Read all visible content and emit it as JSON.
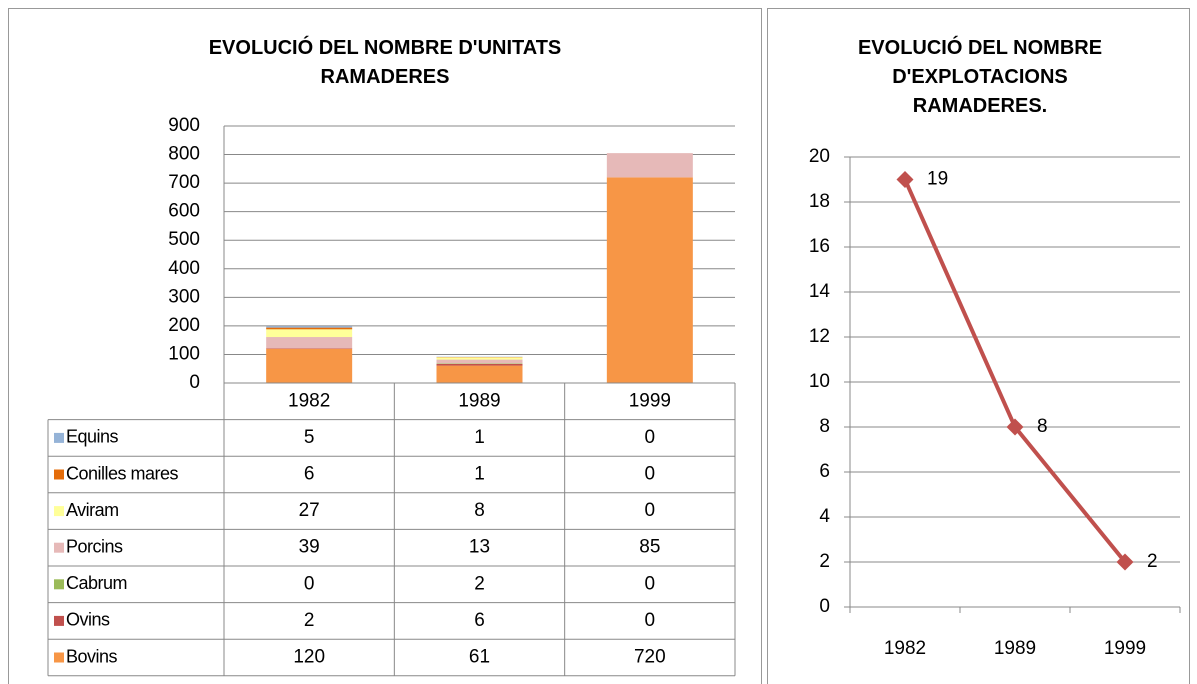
{
  "chart_data": [
    {
      "type": "stacked_bar_table",
      "title": "EVOLUCIÓ DEL NOMBRE D'UNITATS RAMADERES",
      "categories": [
        "1982",
        "1989",
        "1999"
      ],
      "series": [
        {
          "name": "Bovins",
          "color": "#f79646",
          "values": [
            120,
            61,
            720
          ]
        },
        {
          "name": "Ovins",
          "color": "#c0504d",
          "values": [
            2,
            6,
            0
          ]
        },
        {
          "name": "Cabrum",
          "color": "#9bbb59",
          "values": [
            0,
            2,
            0
          ]
        },
        {
          "name": "Porcins",
          "color": "#e6b9b8",
          "values": [
            39,
            13,
            85
          ]
        },
        {
          "name": "Aviram",
          "color": "#ffff99",
          "values": [
            27,
            8,
            0
          ]
        },
        {
          "name": "Conilles mares",
          "color": "#e46c0a",
          "values": [
            6,
            1,
            0
          ]
        },
        {
          "name": "Equins",
          "color": "#95b3d7",
          "values": [
            5,
            1,
            0
          ]
        }
      ],
      "ylim": [
        0,
        900
      ],
      "yticks": [
        0,
        100,
        200,
        300,
        400,
        500,
        600,
        700,
        800,
        900
      ],
      "grid": true
    },
    {
      "type": "line",
      "title": "EVOLUCIÓ DEL NOMBRE D'EXPLOTACIONS RAMADERES.",
      "categories": [
        "1982",
        "1989",
        "1999"
      ],
      "values": [
        19,
        8,
        2
      ],
      "color": "#c0504d",
      "ylim": [
        0,
        20
      ],
      "yticks": [
        0,
        2,
        4,
        6,
        8,
        10,
        12,
        14,
        16,
        18,
        20
      ],
      "grid": true
    }
  ]
}
